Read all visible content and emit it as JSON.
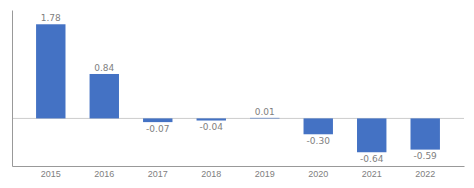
{
  "chart_data": {
    "type": "bar",
    "categories": [
      "2015",
      "2016",
      "2017",
      "2018",
      "2019",
      "2020",
      "2021",
      "2022"
    ],
    "values": [
      1.78,
      0.84,
      -0.07,
      -0.04,
      0.01,
      -0.3,
      -0.64,
      -0.59
    ],
    "value_labels": [
      "1.78",
      "0.84",
      "-0.07",
      "-0.04",
      "0.01",
      "-0.30",
      "-0.64",
      "-0.59"
    ],
    "color": "#4472C4",
    "ylim": [
      -0.9,
      2.05
    ],
    "data_labels": true,
    "tick_labels": "x",
    "grid": false
  }
}
